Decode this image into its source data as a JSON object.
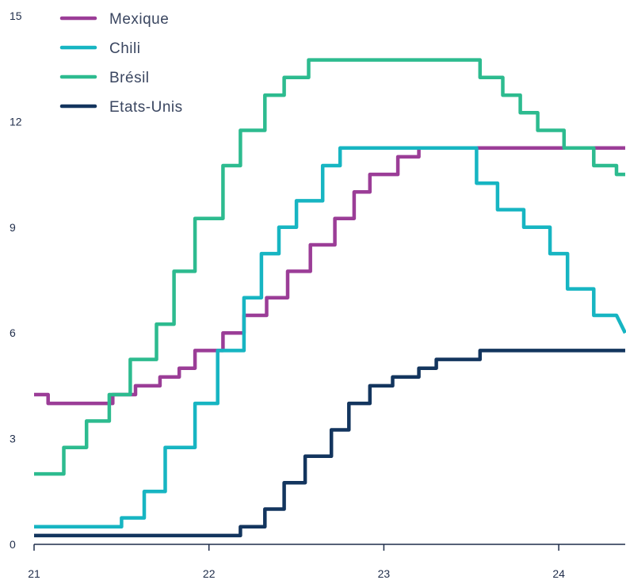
{
  "chart_data": {
    "type": "line",
    "step": true,
    "title": "",
    "xlabel": "",
    "ylabel": "",
    "xlim": [
      21,
      24.38
    ],
    "ylim": [
      0,
      15
    ],
    "y_ticks": [
      0,
      3,
      6,
      9,
      12,
      15
    ],
    "x_ticks": [
      21,
      22,
      23,
      24
    ],
    "grid": false,
    "legend_position": "top-left",
    "series": [
      {
        "name": "Mexique",
        "color": "#9b3d97",
        "points": [
          [
            21.0,
            4.25
          ],
          [
            21.08,
            4.25
          ],
          [
            21.08,
            4.0
          ],
          [
            21.45,
            4.0
          ],
          [
            21.45,
            4.25
          ],
          [
            21.58,
            4.25
          ],
          [
            21.58,
            4.5
          ],
          [
            21.72,
            4.5
          ],
          [
            21.72,
            4.75
          ],
          [
            21.83,
            4.75
          ],
          [
            21.83,
            5.0
          ],
          [
            21.92,
            5.0
          ],
          [
            21.92,
            5.5
          ],
          [
            22.08,
            5.5
          ],
          [
            22.08,
            6.0
          ],
          [
            22.2,
            6.0
          ],
          [
            22.2,
            6.5
          ],
          [
            22.33,
            6.5
          ],
          [
            22.33,
            7.0
          ],
          [
            22.45,
            7.0
          ],
          [
            22.45,
            7.75
          ],
          [
            22.58,
            7.75
          ],
          [
            22.58,
            8.5
          ],
          [
            22.72,
            8.5
          ],
          [
            22.72,
            9.25
          ],
          [
            22.83,
            9.25
          ],
          [
            22.83,
            10.0
          ],
          [
            22.92,
            10.0
          ],
          [
            22.92,
            10.5
          ],
          [
            23.08,
            10.5
          ],
          [
            23.08,
            11.0
          ],
          [
            23.2,
            11.0
          ],
          [
            23.2,
            11.25
          ],
          [
            24.38,
            11.25
          ]
        ]
      },
      {
        "name": "Chili",
        "color": "#17b5c2",
        "points": [
          [
            21.0,
            0.5
          ],
          [
            21.5,
            0.5
          ],
          [
            21.5,
            0.75
          ],
          [
            21.63,
            0.75
          ],
          [
            21.63,
            1.5
          ],
          [
            21.75,
            1.5
          ],
          [
            21.75,
            2.75
          ],
          [
            21.92,
            2.75
          ],
          [
            21.92,
            4.0
          ],
          [
            22.05,
            4.0
          ],
          [
            22.05,
            5.5
          ],
          [
            22.2,
            5.5
          ],
          [
            22.2,
            7.0
          ],
          [
            22.3,
            7.0
          ],
          [
            22.3,
            8.25
          ],
          [
            22.4,
            8.25
          ],
          [
            22.4,
            9.0
          ],
          [
            22.5,
            9.0
          ],
          [
            22.5,
            9.75
          ],
          [
            22.65,
            9.75
          ],
          [
            22.65,
            10.75
          ],
          [
            22.75,
            10.75
          ],
          [
            22.75,
            11.25
          ],
          [
            23.53,
            11.25
          ],
          [
            23.53,
            10.25
          ],
          [
            23.65,
            10.25
          ],
          [
            23.65,
            9.5
          ],
          [
            23.8,
            9.5
          ],
          [
            23.8,
            9.0
          ],
          [
            23.95,
            9.0
          ],
          [
            23.95,
            8.25
          ],
          [
            24.05,
            8.25
          ],
          [
            24.05,
            7.25
          ],
          [
            24.2,
            7.25
          ],
          [
            24.2,
            6.5
          ],
          [
            24.33,
            6.5
          ],
          [
            24.38,
            6.0
          ]
        ]
      },
      {
        "name": "Brésil",
        "color": "#2dbb8f",
        "points": [
          [
            21.0,
            2.0
          ],
          [
            21.17,
            2.0
          ],
          [
            21.17,
            2.75
          ],
          [
            21.3,
            2.75
          ],
          [
            21.3,
            3.5
          ],
          [
            21.43,
            3.5
          ],
          [
            21.43,
            4.25
          ],
          [
            21.55,
            4.25
          ],
          [
            21.55,
            5.25
          ],
          [
            21.7,
            5.25
          ],
          [
            21.7,
            6.25
          ],
          [
            21.8,
            6.25
          ],
          [
            21.8,
            7.75
          ],
          [
            21.92,
            7.75
          ],
          [
            21.92,
            9.25
          ],
          [
            22.08,
            9.25
          ],
          [
            22.08,
            10.75
          ],
          [
            22.18,
            10.75
          ],
          [
            22.18,
            11.75
          ],
          [
            22.32,
            11.75
          ],
          [
            22.32,
            12.75
          ],
          [
            22.43,
            12.75
          ],
          [
            22.43,
            13.25
          ],
          [
            22.57,
            13.25
          ],
          [
            22.57,
            13.75
          ],
          [
            23.55,
            13.75
          ],
          [
            23.55,
            13.25
          ],
          [
            23.68,
            13.25
          ],
          [
            23.68,
            12.75
          ],
          [
            23.78,
            12.75
          ],
          [
            23.78,
            12.25
          ],
          [
            23.88,
            12.25
          ],
          [
            23.88,
            11.75
          ],
          [
            24.03,
            11.75
          ],
          [
            24.03,
            11.25
          ],
          [
            24.2,
            11.25
          ],
          [
            24.2,
            10.75
          ],
          [
            24.33,
            10.75
          ],
          [
            24.33,
            10.5
          ],
          [
            24.38,
            10.5
          ]
        ]
      },
      {
        "name": "Etats-Unis",
        "color": "#13355e",
        "points": [
          [
            21.0,
            0.25
          ],
          [
            22.18,
            0.25
          ],
          [
            22.18,
            0.5
          ],
          [
            22.32,
            0.5
          ],
          [
            22.32,
            1.0
          ],
          [
            22.43,
            1.0
          ],
          [
            22.43,
            1.75
          ],
          [
            22.55,
            1.75
          ],
          [
            22.55,
            2.5
          ],
          [
            22.7,
            2.5
          ],
          [
            22.7,
            3.25
          ],
          [
            22.8,
            3.25
          ],
          [
            22.8,
            4.0
          ],
          [
            22.92,
            4.0
          ],
          [
            22.92,
            4.5
          ],
          [
            23.05,
            4.5
          ],
          [
            23.05,
            4.75
          ],
          [
            23.2,
            4.75
          ],
          [
            23.2,
            5.0
          ],
          [
            23.3,
            5.0
          ],
          [
            23.3,
            5.25
          ],
          [
            23.55,
            5.25
          ],
          [
            23.55,
            5.5
          ],
          [
            24.38,
            5.5
          ]
        ]
      }
    ]
  }
}
